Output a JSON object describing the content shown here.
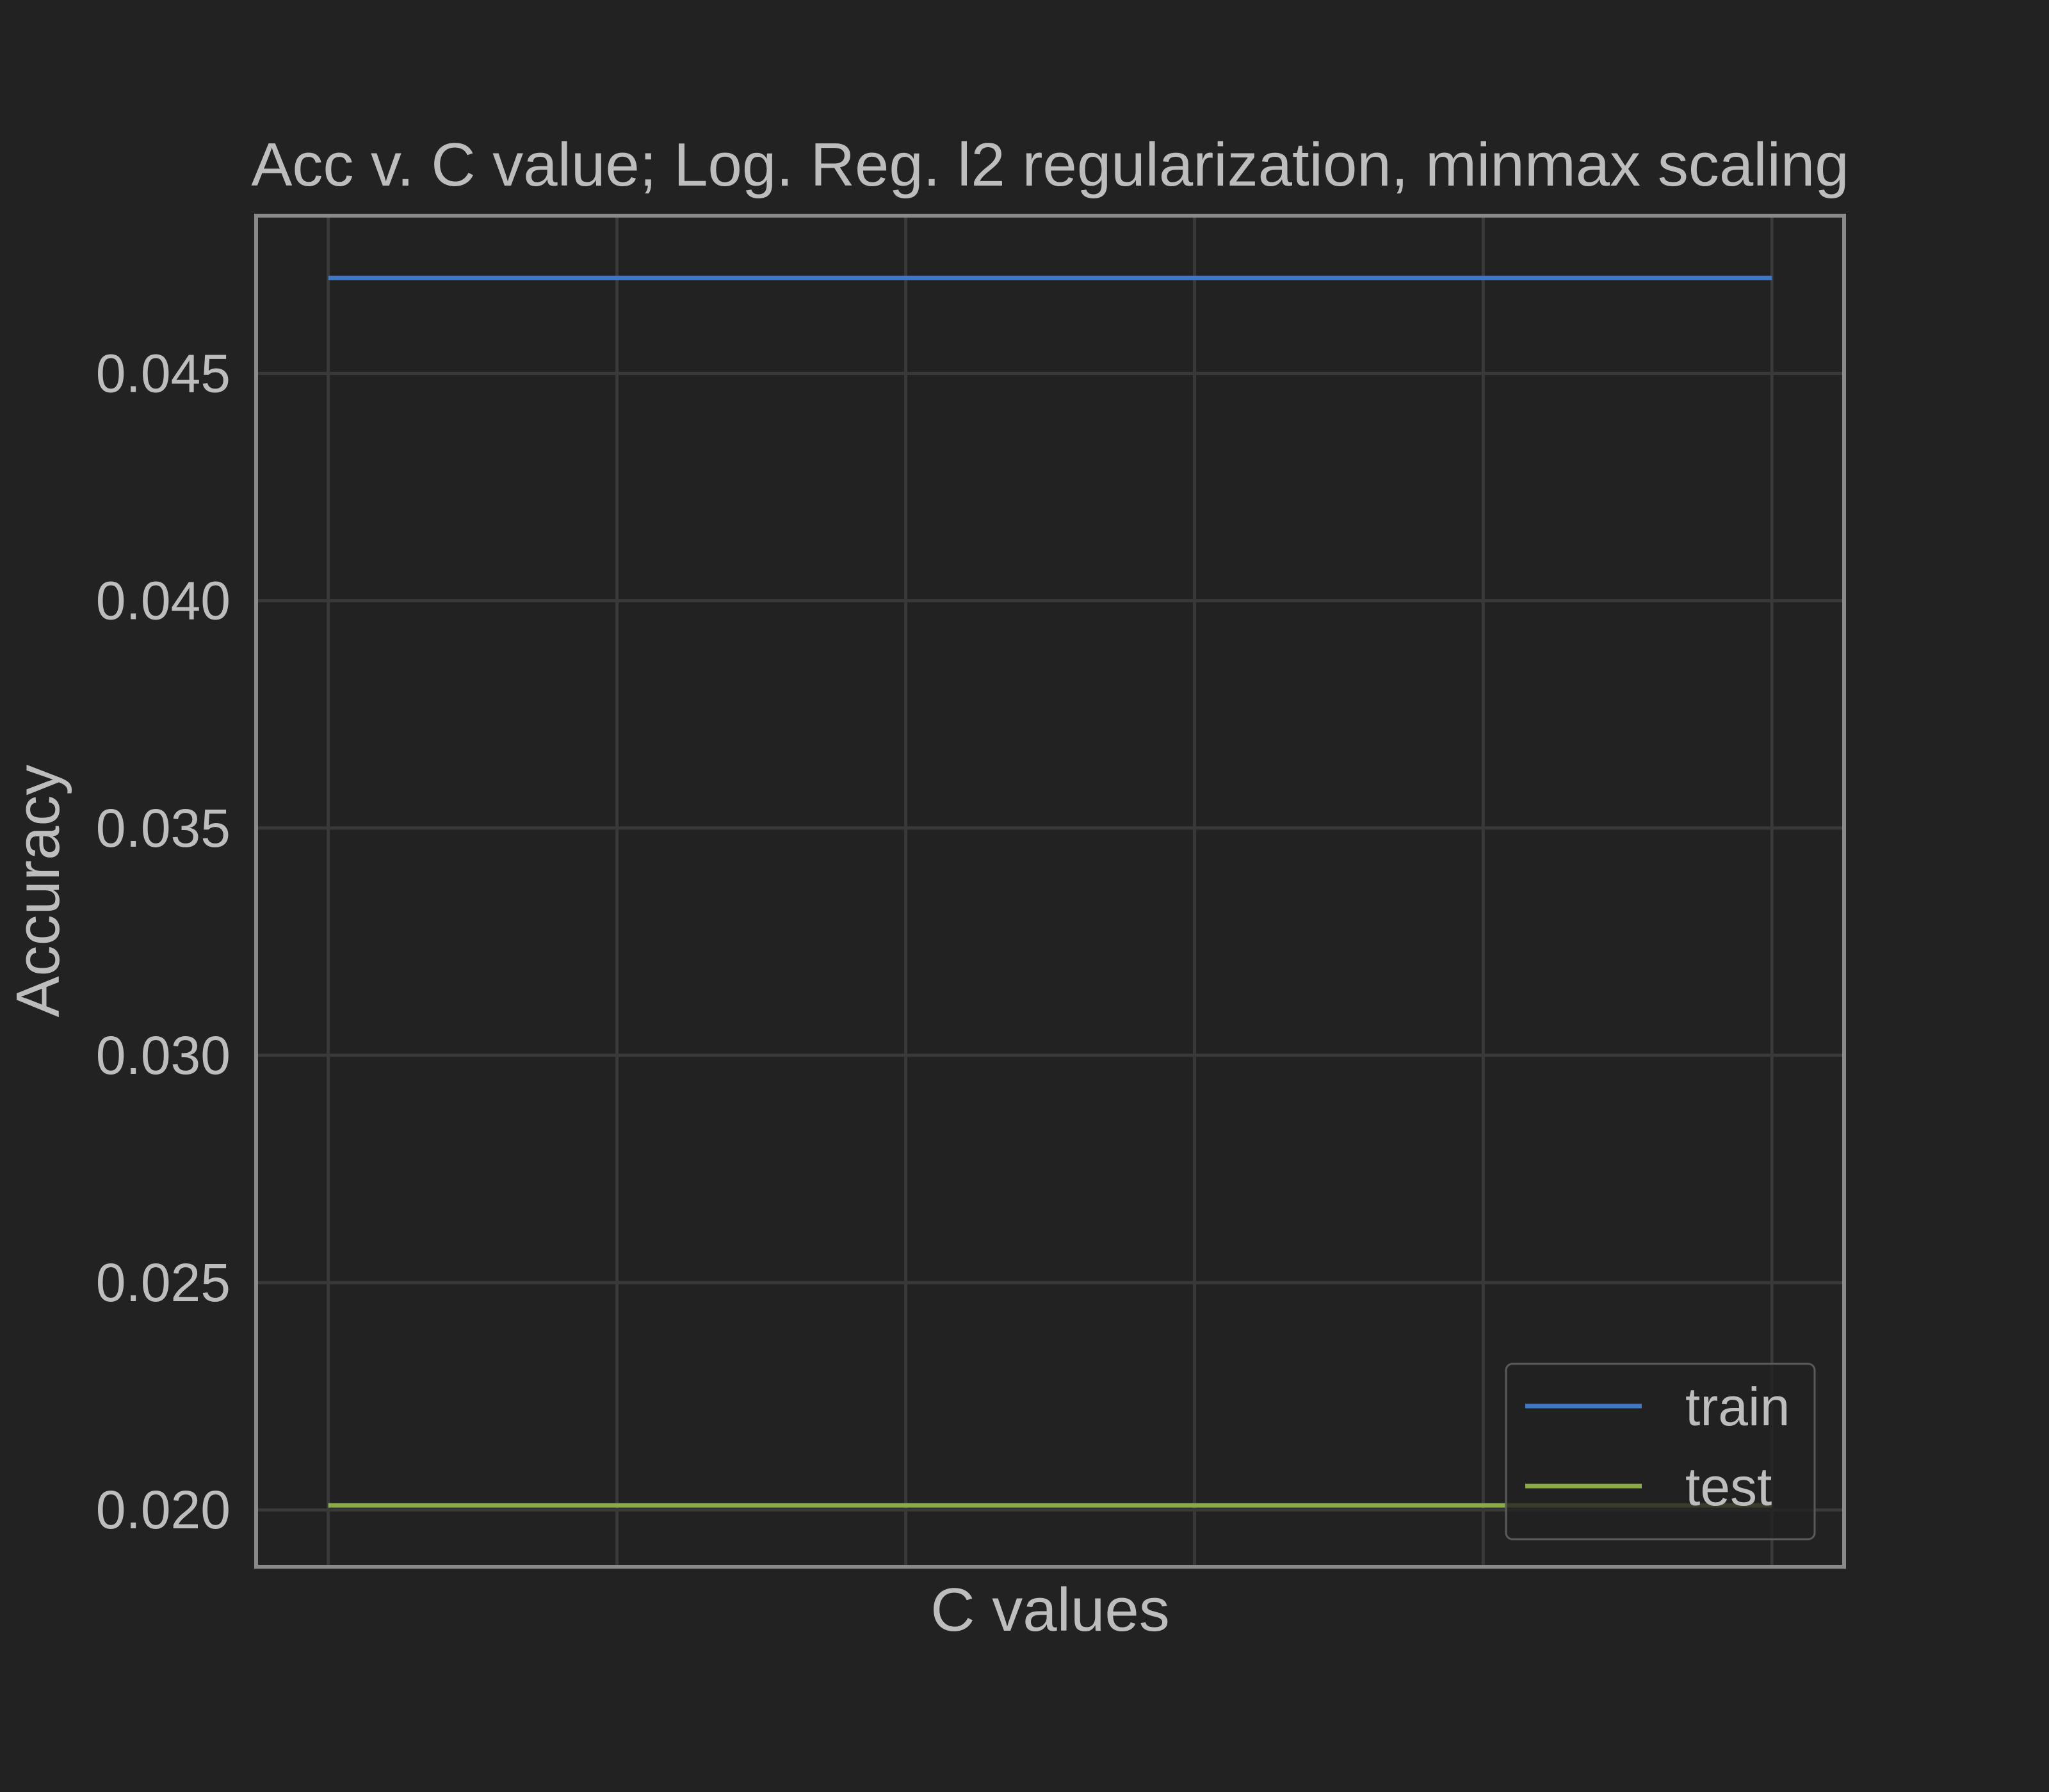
{
  "chart_data": {
    "type": "line",
    "title": "Acc v. C value; Log. Reg. l2 regularization, minmax scaling",
    "xlabel": "C values",
    "ylabel": "Accuracy",
    "x": [
      0,
      1,
      2,
      3,
      4,
      5
    ],
    "xlim": [
      -0.25,
      5.25
    ],
    "ylim": [
      0.01875,
      0.04847
    ],
    "yticks": [
      0.02,
      0.025,
      0.03,
      0.035,
      0.04,
      0.045
    ],
    "ytick_labels": [
      "0.020",
      "0.025",
      "0.030",
      "0.035",
      "0.040",
      "0.045"
    ],
    "xtick_labels": [],
    "grid": true,
    "legend_position": "lower-right",
    "series": [
      {
        "name": "train",
        "color": "#3f78c8",
        "values": [
          0.0471,
          0.0471,
          0.0471,
          0.0471,
          0.0471,
          0.0471
        ]
      },
      {
        "name": "test",
        "color": "#8aac44",
        "values": [
          0.0201,
          0.0201,
          0.0201,
          0.0201,
          0.0201,
          0.0201
        ]
      }
    ]
  }
}
